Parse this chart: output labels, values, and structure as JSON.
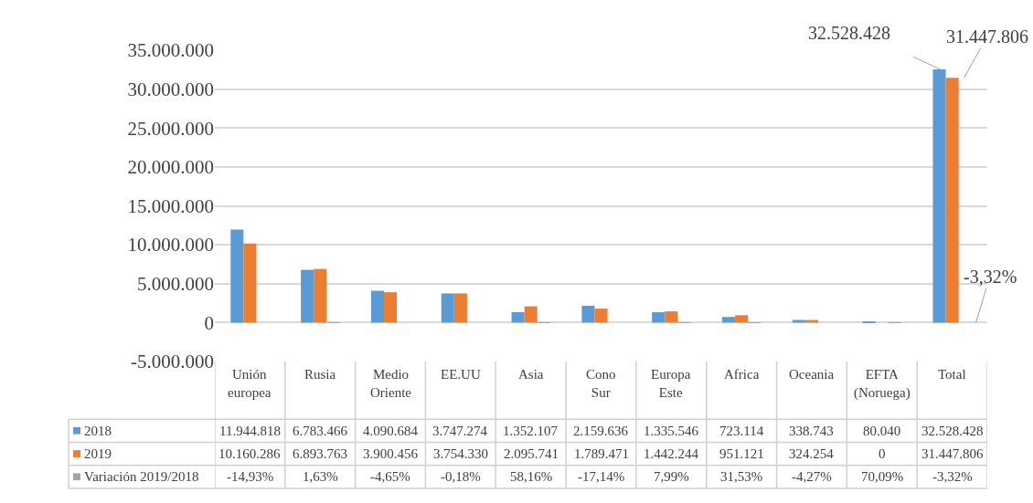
{
  "chart_data": {
    "type": "bar",
    "categories": [
      "Unión europea",
      "Rusia",
      "Medio Oriente",
      "EE.UU",
      "Asia",
      "Cono Sur",
      "Europa Este",
      "Africa",
      "Oceania",
      "EFTA (Noruega)",
      "Total"
    ],
    "series": [
      {
        "name": "2018",
        "color": "#5b9bd5",
        "values": [
          11944818,
          6783466,
          4090684,
          3747274,
          1352107,
          2159636,
          1335546,
          723114,
          338743,
          80040,
          32528428
        ],
        "value_labels": [
          "11.944.818",
          "6.783.466",
          "4.090.684",
          "3.747.274",
          "1.352.107",
          "2.159.636",
          "1.335.546",
          "723.114",
          "338.743",
          "80.040",
          "32.528.428"
        ]
      },
      {
        "name": "2019",
        "color": "#ed7d31",
        "values": [
          10160286,
          6893763,
          3900456,
          3754330,
          2095741,
          1789471,
          1442244,
          951121,
          324254,
          0,
          31447806
        ],
        "value_labels": [
          "10.160.286",
          "6.893.763",
          "3.900.456",
          "3.754.330",
          "2.095.741",
          "1.789.471",
          "1.442.244",
          "951.121",
          "324.254",
          "0",
          "31.447.806"
        ]
      },
      {
        "name": "Variación 2019/2018",
        "color": "#a5a5a5",
        "values": [
          -14.93,
          1.63,
          -4.65,
          -0.18,
          58.16,
          -17.14,
          7.99,
          31.53,
          -4.27,
          70.09,
          -3.32
        ],
        "value_labels": [
          "-14,93%",
          "1,63%",
          "-4,65%",
          "-0,18%",
          "58,16%",
          "-17,14%",
          "7,99%",
          "31,53%",
          "-4,27%",
          "70,09%",
          "-3,32%"
        ]
      }
    ],
    "ylim": [
      -5000000,
      35000000
    ],
    "yticks": [
      {
        "value": -5000000,
        "label": "-5.000.000"
      },
      {
        "value": 0,
        "label": "0"
      },
      {
        "value": 5000000,
        "label": "5.000.000"
      },
      {
        "value": 10000000,
        "label": "10.000.000"
      },
      {
        "value": 15000000,
        "label": "15.000.000"
      },
      {
        "value": 20000000,
        "label": "20.000.000"
      },
      {
        "value": 25000000,
        "label": "25.000.000"
      },
      {
        "value": 30000000,
        "label": "30.000.000"
      },
      {
        "value": 35000000,
        "label": "35.000.000"
      }
    ],
    "grid": "y",
    "legend": "left",
    "annotations": [
      "32.528.428",
      "31.447.806",
      "-3,32%"
    ]
  }
}
